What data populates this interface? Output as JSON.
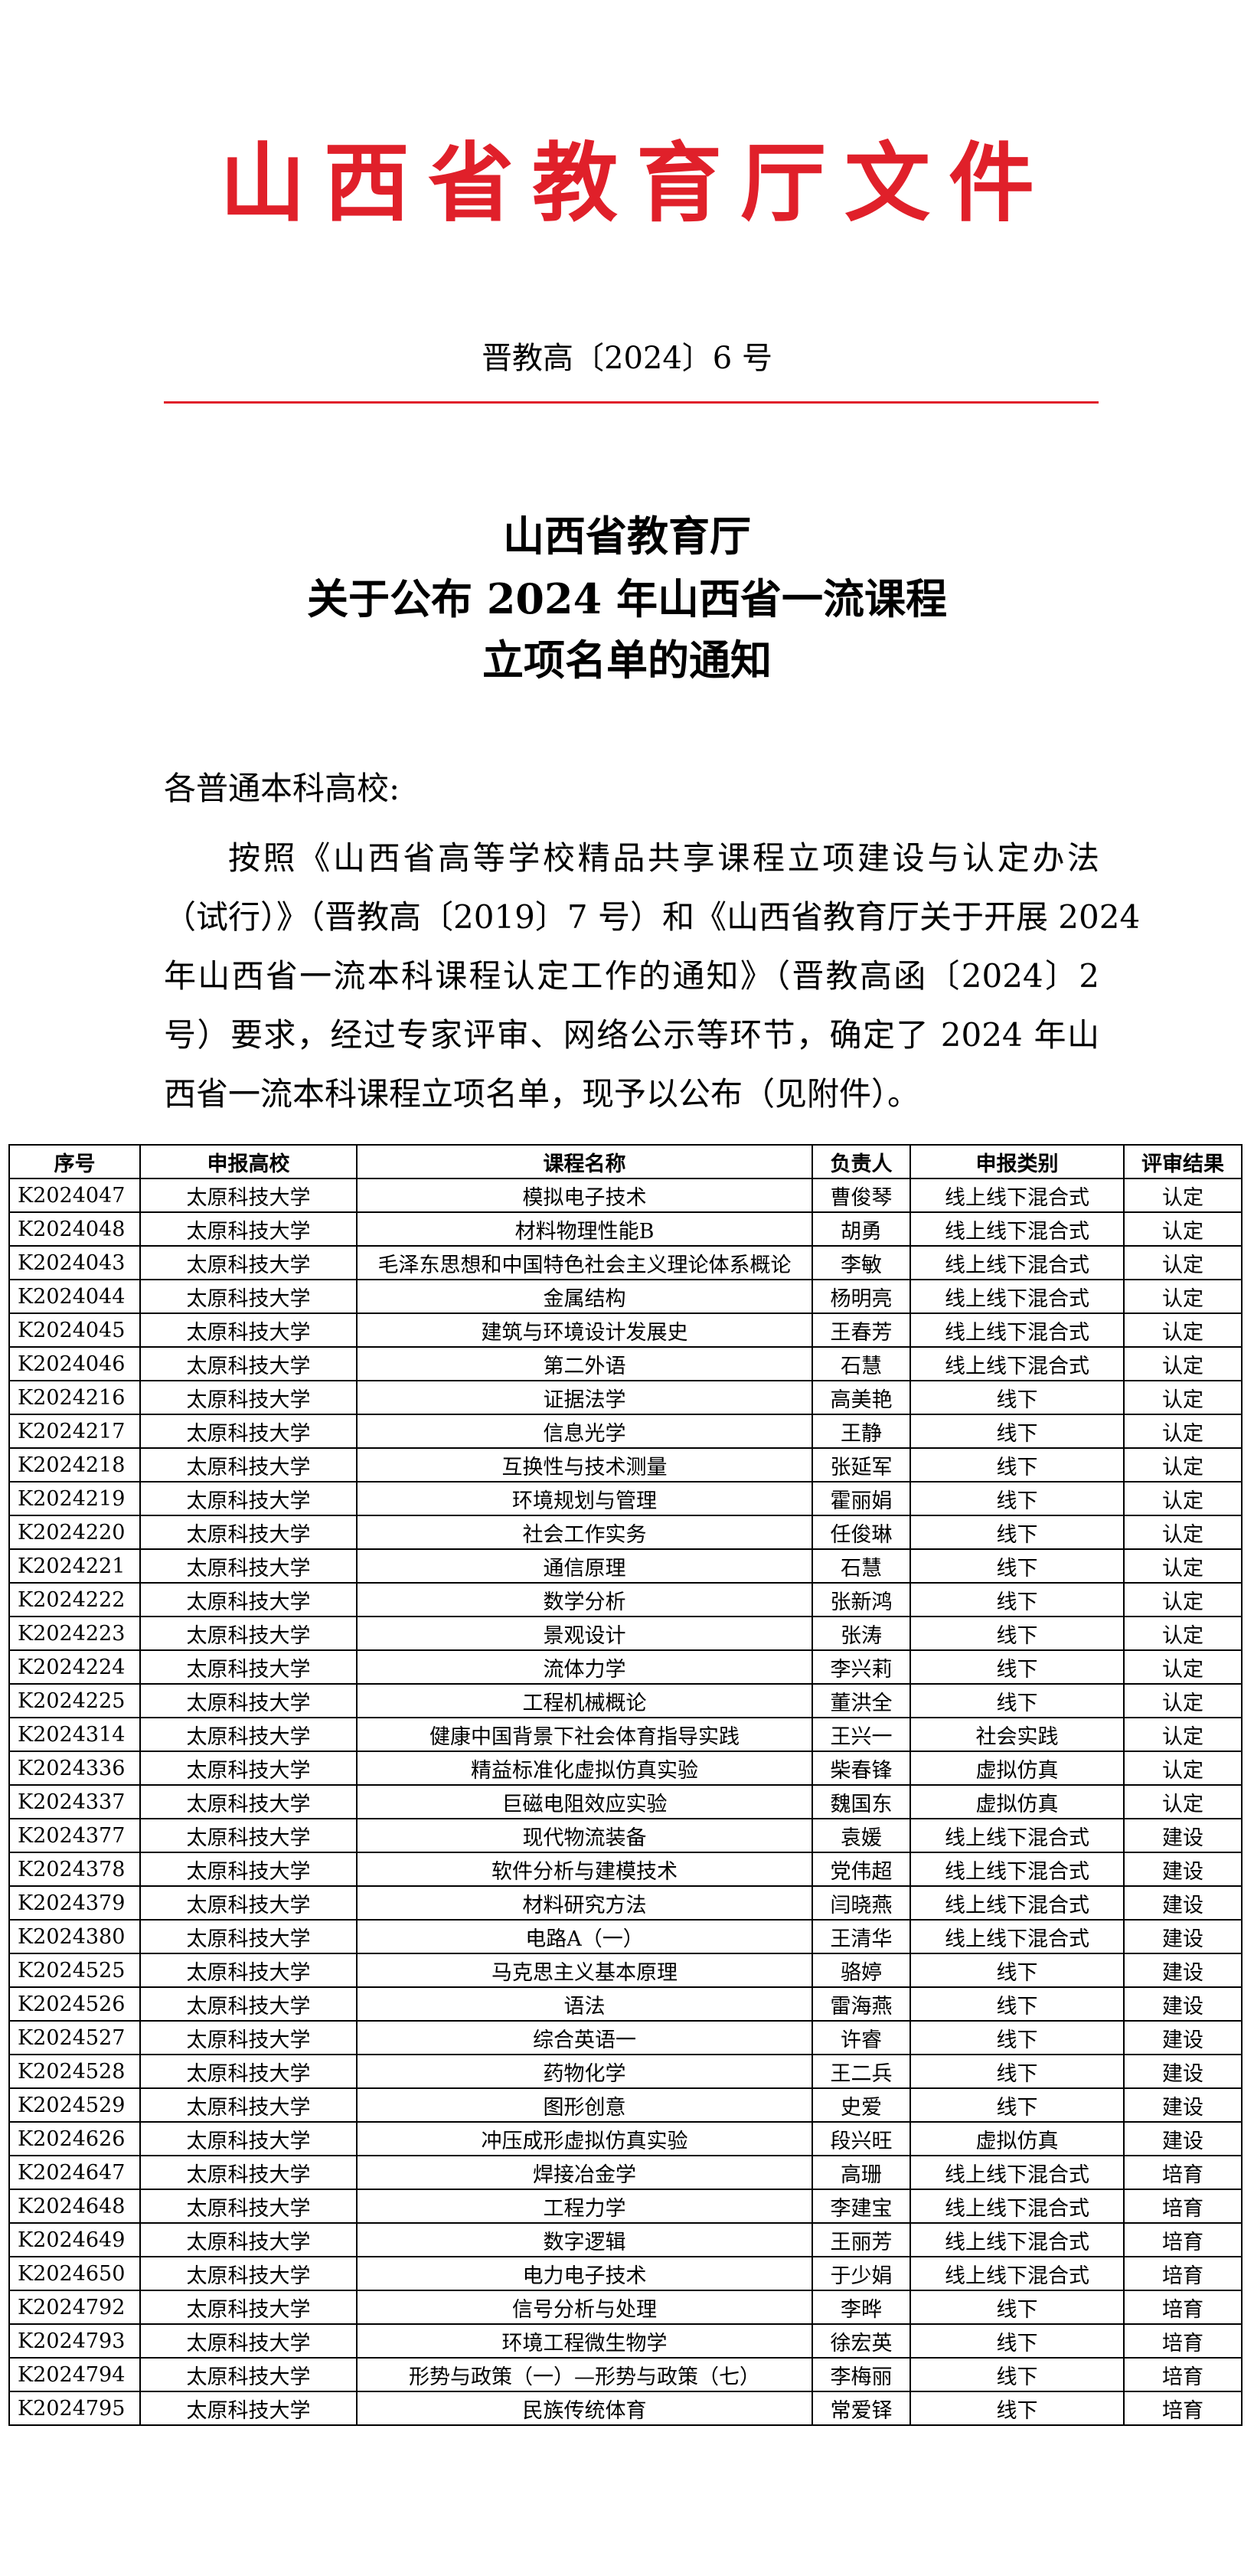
{
  "header": {
    "title": "山西省教育厅文件",
    "doc_number": "晋教高〔2024〕6 号"
  },
  "notice_title": [
    "山西省教育厅",
    "关于公布 2024 年山西省一流课程",
    "立项名单的通知"
  ],
  "body": {
    "salutation": "各普通本科高校:",
    "paragraph_lines": [
      "按照《山西省高等学校精品共享课程立项建设与认定办法",
      "（试行）》（晋教高〔2019〕7 号）和《山西省教育厅关于开展 2024",
      "年山西省一流本科课程认定工作的通知》（晋教高函〔2024〕2",
      "号）要求，经过专家评审、网络公示等环节，确定了 2024 年山",
      "西省一流本科课程立项名单，现予以公布（见附件）。"
    ]
  },
  "table": {
    "columns": [
      "序号",
      "申报高校",
      "课程名称",
      "负责人",
      "申报类别",
      "评审结果"
    ],
    "rows": [
      [
        "K2024047",
        "太原科技大学",
        "模拟电子技术",
        "曹俊琴",
        "线上线下混合式",
        "认定"
      ],
      [
        "K2024048",
        "太原科技大学",
        "材料物理性能B",
        "胡勇",
        "线上线下混合式",
        "认定"
      ],
      [
        "K2024043",
        "太原科技大学",
        "毛泽东思想和中国特色社会主义理论体系概论",
        "李敏",
        "线上线下混合式",
        "认定"
      ],
      [
        "K2024044",
        "太原科技大学",
        "金属结构",
        "杨明亮",
        "线上线下混合式",
        "认定"
      ],
      [
        "K2024045",
        "太原科技大学",
        "建筑与环境设计发展史",
        "王春芳",
        "线上线下混合式",
        "认定"
      ],
      [
        "K2024046",
        "太原科技大学",
        "第二外语",
        "石慧",
        "线上线下混合式",
        "认定"
      ],
      [
        "K2024216",
        "太原科技大学",
        "证据法学",
        "高美艳",
        "线下",
        "认定"
      ],
      [
        "K2024217",
        "太原科技大学",
        "信息光学",
        "王静",
        "线下",
        "认定"
      ],
      [
        "K2024218",
        "太原科技大学",
        "互换性与技术测量",
        "张延军",
        "线下",
        "认定"
      ],
      [
        "K2024219",
        "太原科技大学",
        "环境规划与管理",
        "霍丽娟",
        "线下",
        "认定"
      ],
      [
        "K2024220",
        "太原科技大学",
        "社会工作实务",
        "任俊琳",
        "线下",
        "认定"
      ],
      [
        "K2024221",
        "太原科技大学",
        "通信原理",
        "石慧",
        "线下",
        "认定"
      ],
      [
        "K2024222",
        "太原科技大学",
        "数学分析",
        "张新鸿",
        "线下",
        "认定"
      ],
      [
        "K2024223",
        "太原科技大学",
        "景观设计",
        "张涛",
        "线下",
        "认定"
      ],
      [
        "K2024224",
        "太原科技大学",
        "流体力学",
        "李兴莉",
        "线下",
        "认定"
      ],
      [
        "K2024225",
        "太原科技大学",
        "工程机械概论",
        "董洪全",
        "线下",
        "认定"
      ],
      [
        "K2024314",
        "太原科技大学",
        "健康中国背景下社会体育指导实践",
        "王兴一",
        "社会实践",
        "认定"
      ],
      [
        "K2024336",
        "太原科技大学",
        "精益标准化虚拟仿真实验",
        "柴春锋",
        "虚拟仿真",
        "认定"
      ],
      [
        "K2024337",
        "太原科技大学",
        "巨磁电阻效应实验",
        "魏国东",
        "虚拟仿真",
        "认定"
      ],
      [
        "K2024377",
        "太原科技大学",
        "现代物流装备",
        "袁媛",
        "线上线下混合式",
        "建设"
      ],
      [
        "K2024378",
        "太原科技大学",
        "软件分析与建模技术",
        "党伟超",
        "线上线下混合式",
        "建设"
      ],
      [
        "K2024379",
        "太原科技大学",
        "材料研究方法",
        "闫晓燕",
        "线上线下混合式",
        "建设"
      ],
      [
        "K2024380",
        "太原科技大学",
        "电路A（一）",
        "王清华",
        "线上线下混合式",
        "建设"
      ],
      [
        "K2024525",
        "太原科技大学",
        "马克思主义基本原理",
        "骆婷",
        "线下",
        "建设"
      ],
      [
        "K2024526",
        "太原科技大学",
        "语法",
        "雷海燕",
        "线下",
        "建设"
      ],
      [
        "K2024527",
        "太原科技大学",
        "综合英语一",
        "许睿",
        "线下",
        "建设"
      ],
      [
        "K2024528",
        "太原科技大学",
        "药物化学",
        "王二兵",
        "线下",
        "建设"
      ],
      [
        "K2024529",
        "太原科技大学",
        "图形创意",
        "史爱",
        "线下",
        "建设"
      ],
      [
        "K2024626",
        "太原科技大学",
        "冲压成形虚拟仿真实验",
        "段兴旺",
        "虚拟仿真",
        "建设"
      ],
      [
        "K2024647",
        "太原科技大学",
        "焊接冶金学",
        "高珊",
        "线上线下混合式",
        "培育"
      ],
      [
        "K2024648",
        "太原科技大学",
        "工程力学",
        "李建宝",
        "线上线下混合式",
        "培育"
      ],
      [
        "K2024649",
        "太原科技大学",
        "数字逻辑",
        "王丽芳",
        "线上线下混合式",
        "培育"
      ],
      [
        "K2024650",
        "太原科技大学",
        "电力电子技术",
        "于少娟",
        "线上线下混合式",
        "培育"
      ],
      [
        "K2024792",
        "太原科技大学",
        "信号分析与处理",
        "李晔",
        "线下",
        "培育"
      ],
      [
        "K2024793",
        "太原科技大学",
        "环境工程微生物学",
        "徐宏英",
        "线下",
        "培育"
      ],
      [
        "K2024794",
        "太原科技大学",
        "形势与政策（一）—形势与政策（七）",
        "李梅丽",
        "线下",
        "培育"
      ],
      [
        "K2024795",
        "太原科技大学",
        "民族传统体育",
        "常爱铎",
        "线下",
        "培育"
      ]
    ]
  }
}
